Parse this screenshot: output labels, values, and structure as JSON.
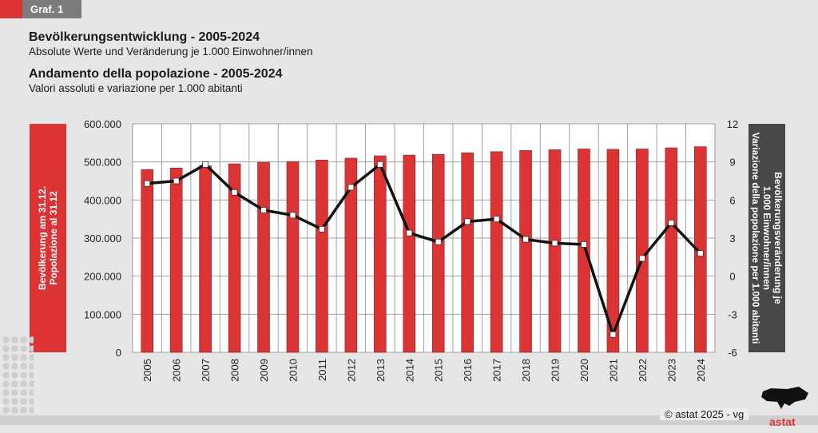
{
  "header": {
    "tag": "Graf. 1",
    "title_de": "Bevölkerungsentwicklung - 2005-2024",
    "subtitle_de": "Absolute Werte und Veränderung je 1.000 Einwohner/innen",
    "title_it": "Andamento della popolazione - 2005-2024",
    "subtitle_it": "Valori assoluti e variazione per 1.000 abitanti"
  },
  "footer": {
    "credit": "©  astat 2025 - vg",
    "logo": "astat"
  },
  "colors": {
    "bar": "#dc3434",
    "line": "#111111",
    "left_box": "#dc3434",
    "right_box": "#4a4846"
  },
  "chart_data": {
    "type": "bar+line",
    "categories": [
      "2005",
      "2006",
      "2007",
      "2008",
      "2009",
      "2010",
      "2011",
      "2012",
      "2013",
      "2014",
      "2015",
      "2016",
      "2017",
      "2018",
      "2019",
      "2020",
      "2021",
      "2022",
      "2023",
      "2024"
    ],
    "series": [
      {
        "name": "Bevölkerung am 31.12. / Popolazione al 31.12",
        "type": "bar",
        "axis": "left",
        "values": [
          480000,
          484000,
          490000,
          495000,
          499000,
          501000,
          505000,
          510000,
          516000,
          518000,
          520000,
          524000,
          527000,
          530000,
          532000,
          534000,
          533000,
          534000,
          537000,
          540000
        ]
      },
      {
        "name": "Bevölkerungsveränderung je 1.000 Einwohner/innen / Variazione della popolazione per 1.000 abitanti",
        "type": "line",
        "axis": "right",
        "values": [
          7.3,
          7.5,
          8.8,
          6.6,
          5.2,
          4.8,
          3.7,
          7.0,
          8.8,
          3.4,
          2.7,
          4.3,
          4.5,
          2.9,
          2.6,
          2.5,
          -4.6,
          1.4,
          4.2,
          1.8
        ]
      }
    ],
    "ylabel_left": [
      "Bevölkerung am 31.12.",
      "Popolazione al 31.12"
    ],
    "ylabel_right": [
      "Bevölkerungsveränderung je",
      "1.000 Einwohner/innen",
      "Variazione della popolazione per 1.000 abitanti"
    ],
    "ylim_left": [
      0,
      600000
    ],
    "yticks_left": [
      "0",
      "100.000",
      "200.000",
      "300.000",
      "400.000",
      "500.000",
      "600.000"
    ],
    "ylim_right": [
      -6,
      12
    ],
    "yticks_right": [
      "-6",
      "-3",
      "0",
      "3",
      "6",
      "9",
      "12"
    ],
    "grid": true
  }
}
